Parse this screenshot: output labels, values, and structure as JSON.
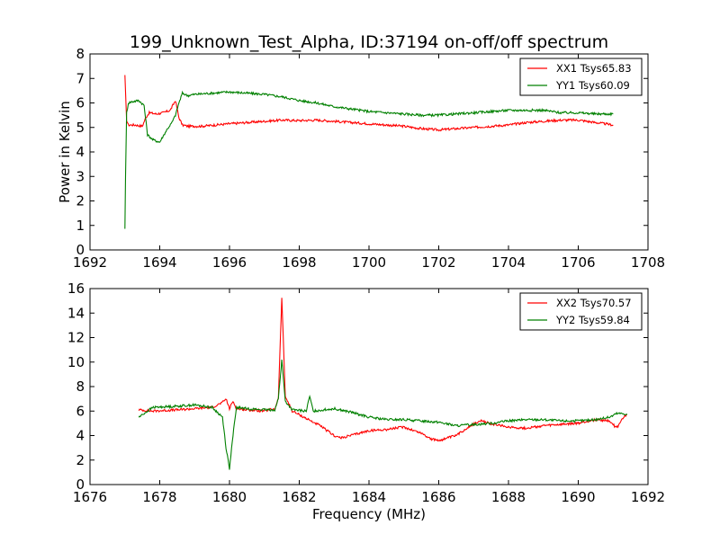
{
  "page_title": "199_Unknown_Test_Alpha, ID:37194 on-off/off spectrum",
  "chart_data": [
    {
      "type": "line",
      "title": "199_Unknown_Test_Alpha, ID:37194 on-off/off spectrum",
      "xlabel": "",
      "ylabel": "Power in Kelvin",
      "xlim": [
        1692,
        1708
      ],
      "ylim": [
        0,
        8
      ],
      "xticks": [
        "1692",
        "1694",
        "1696",
        "1698",
        "1700",
        "1702",
        "1704",
        "1706",
        "1708"
      ],
      "yticks": [
        "0",
        "1",
        "2",
        "3",
        "4",
        "5",
        "6",
        "7",
        "8"
      ],
      "grid": false,
      "legend_position": "top-right",
      "series": [
        {
          "name": "XX1 Tsys65.83",
          "color": "#ff0000",
          "x": [
            1693.0,
            1693.05,
            1693.1,
            1693.3,
            1693.5,
            1693.6,
            1693.7,
            1693.9,
            1694.1,
            1694.3,
            1694.45,
            1694.55,
            1694.65,
            1694.8,
            1695.2,
            1695.6,
            1696.0,
            1696.5,
            1697.0,
            1697.5,
            1698.0,
            1698.5,
            1699.0,
            1699.5,
            1700.0,
            1700.5,
            1701.0,
            1701.5,
            1702.0,
            1702.5,
            1703.0,
            1703.5,
            1704.0,
            1704.5,
            1705.0,
            1705.5,
            1706.0,
            1706.5,
            1707.0
          ],
          "y": [
            7.1,
            5.3,
            5.1,
            5.1,
            5.05,
            5.4,
            5.6,
            5.55,
            5.6,
            5.7,
            6.1,
            5.4,
            5.1,
            5.05,
            5.05,
            5.1,
            5.15,
            5.2,
            5.25,
            5.3,
            5.28,
            5.3,
            5.25,
            5.2,
            5.15,
            5.1,
            5.05,
            4.95,
            4.9,
            4.95,
            5.0,
            5.05,
            5.1,
            5.2,
            5.25,
            5.3,
            5.3,
            5.2,
            5.1
          ]
        },
        {
          "name": "YY1 Tsys60.09",
          "color": "#008000",
          "x": [
            1693.0,
            1693.02,
            1693.05,
            1693.1,
            1693.2,
            1693.4,
            1693.55,
            1693.65,
            1693.8,
            1694.0,
            1694.2,
            1694.35,
            1694.45,
            1694.55,
            1694.65,
            1694.8,
            1695.0,
            1695.5,
            1696.0,
            1696.5,
            1697.0,
            1697.5,
            1698.0,
            1698.5,
            1699.0,
            1699.5,
            1700.0,
            1700.5,
            1701.0,
            1701.5,
            1702.0,
            1702.5,
            1703.0,
            1703.5,
            1704.0,
            1704.5,
            1705.0,
            1705.5,
            1706.0,
            1706.5,
            1707.0
          ],
          "y": [
            0.9,
            3.0,
            5.6,
            6.0,
            6.05,
            6.1,
            5.9,
            4.7,
            4.5,
            4.4,
            4.9,
            5.2,
            5.5,
            6.0,
            6.4,
            6.3,
            6.35,
            6.4,
            6.45,
            6.4,
            6.35,
            6.25,
            6.1,
            6.0,
            5.85,
            5.75,
            5.65,
            5.6,
            5.55,
            5.5,
            5.5,
            5.55,
            5.6,
            5.65,
            5.7,
            5.7,
            5.7,
            5.6,
            5.6,
            5.55,
            5.55
          ]
        }
      ]
    },
    {
      "type": "line",
      "title": "",
      "xlabel": "Frequency (MHz)",
      "ylabel": "",
      "xlim": [
        1676,
        1692
      ],
      "ylim": [
        0,
        16
      ],
      "xticks": [
        "1676",
        "1678",
        "1680",
        "1682",
        "1684",
        "1686",
        "1688",
        "1690",
        "1692"
      ],
      "yticks": [
        "0",
        "2",
        "4",
        "6",
        "8",
        "10",
        "12",
        "14",
        "16"
      ],
      "grid": false,
      "legend_position": "top-right",
      "series": [
        {
          "name": "XX2 Tsys70.57",
          "color": "#ff0000",
          "x": [
            1677.4,
            1677.8,
            1678.5,
            1679.0,
            1679.5,
            1679.8,
            1679.9,
            1680.0,
            1680.1,
            1680.2,
            1680.5,
            1681.0,
            1681.3,
            1681.4,
            1681.5,
            1681.6,
            1681.8,
            1682.2,
            1682.6,
            1683.0,
            1683.2,
            1683.6,
            1684.0,
            1684.5,
            1685.0,
            1685.5,
            1685.8,
            1686.0,
            1686.5,
            1686.9,
            1687.2,
            1687.6,
            1688.0,
            1688.5,
            1689.0,
            1689.5,
            1690.0,
            1690.5,
            1690.9,
            1691.1,
            1691.3,
            1691.4
          ],
          "y": [
            6.1,
            6.0,
            6.1,
            6.2,
            6.3,
            6.7,
            7.0,
            6.2,
            6.8,
            6.2,
            6.1,
            6.0,
            6.2,
            7.0,
            15.3,
            7.2,
            6.0,
            5.4,
            4.8,
            4.0,
            3.8,
            4.1,
            4.4,
            4.5,
            4.7,
            4.2,
            3.7,
            3.6,
            4.0,
            4.8,
            5.2,
            4.9,
            4.7,
            4.6,
            4.8,
            4.9,
            5.0,
            5.3,
            5.2,
            4.6,
            5.5,
            5.7
          ]
        },
        {
          "name": "YY2 Tsys59.84",
          "color": "#008000",
          "x": [
            1677.4,
            1677.8,
            1678.5,
            1679.0,
            1679.5,
            1679.8,
            1679.9,
            1680.0,
            1680.1,
            1680.2,
            1680.5,
            1681.0,
            1681.3,
            1681.4,
            1681.5,
            1681.6,
            1681.8,
            1682.2,
            1682.3,
            1682.4,
            1683.0,
            1683.5,
            1684.0,
            1684.5,
            1685.0,
            1685.5,
            1686.0,
            1686.5,
            1687.0,
            1687.5,
            1688.0,
            1688.5,
            1689.0,
            1689.5,
            1690.0,
            1690.5,
            1690.9,
            1691.1,
            1691.3,
            1691.4
          ],
          "y": [
            5.5,
            6.3,
            6.4,
            6.5,
            6.3,
            5.5,
            3.0,
            1.3,
            4.0,
            6.3,
            6.2,
            6.1,
            6.1,
            7.0,
            10.2,
            6.8,
            6.1,
            6.0,
            7.2,
            6.0,
            6.2,
            5.9,
            5.5,
            5.3,
            5.3,
            5.2,
            5.1,
            4.8,
            4.9,
            5.0,
            5.2,
            5.3,
            5.3,
            5.2,
            5.2,
            5.3,
            5.5,
            5.8,
            5.8,
            5.7
          ]
        }
      ]
    }
  ]
}
